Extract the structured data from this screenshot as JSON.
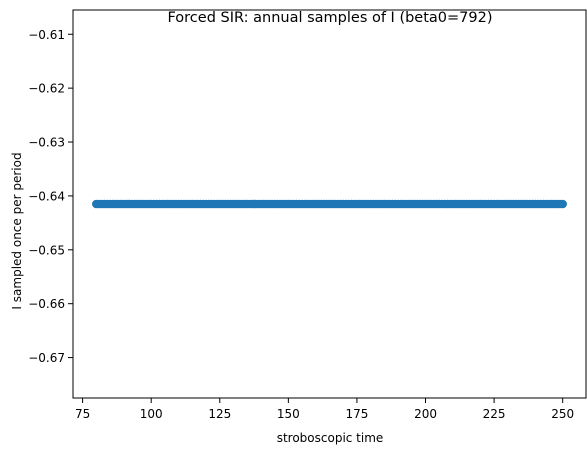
{
  "chart_data": {
    "type": "scatter",
    "title": "Forced SIR: annual samples of I (beta0=792)",
    "xlabel": "stroboscopic time",
    "ylabel": "I sampled once per period",
    "xlim": [
      71.5,
      258.5
    ],
    "ylim": [
      -0.6775,
      -0.6055
    ],
    "xticks": [
      75,
      100,
      125,
      150,
      175,
      200,
      225,
      250
    ],
    "yticks": [
      -0.61,
      -0.62,
      -0.63,
      -0.64,
      -0.65,
      -0.66,
      -0.67
    ],
    "xtick_labels": [
      "75",
      "100",
      "125",
      "150",
      "175",
      "200",
      "225",
      "250"
    ],
    "ytick_labels": [
      "−0.61",
      "−0.62",
      "−0.63",
      "−0.64",
      "−0.65",
      "−0.66",
      "−0.67"
    ],
    "grid": false,
    "series": [
      {
        "x_start": 80,
        "x_end": 250,
        "x_step": 1,
        "y": -0.6415,
        "color": "#1f77b4"
      }
    ]
  }
}
